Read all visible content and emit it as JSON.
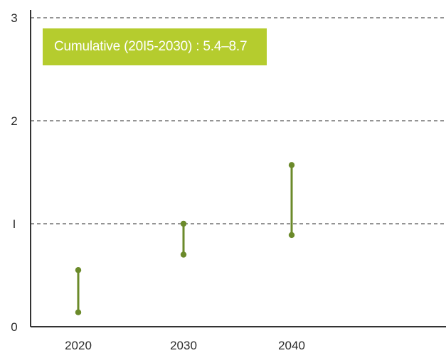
{
  "chart_data": {
    "type": "range",
    "categories": [
      "2020",
      "2030",
      "2040"
    ],
    "series": [
      {
        "low": [
          0.14,
          0.7,
          0.89
        ],
        "high": [
          0.55,
          1.0,
          1.57
        ]
      }
    ],
    "ylim": [
      0,
      3
    ],
    "y_ticks": [
      0,
      1,
      2,
      3
    ],
    "y_tick_labels": [
      "0",
      "I",
      "2",
      "3"
    ],
    "grid": "dashed horizontal",
    "title": "",
    "xlabel": "",
    "ylabel": "",
    "annotation": "Cumulative (2015-2030) : 5.4–8.7",
    "annotation_display": "Cumulative (20I5-2030) : 5.4–8.7"
  },
  "colors": {
    "accent": "#b5cc2e",
    "series": "#6b8a2a",
    "grid": "#555555",
    "axis": "#333333"
  }
}
